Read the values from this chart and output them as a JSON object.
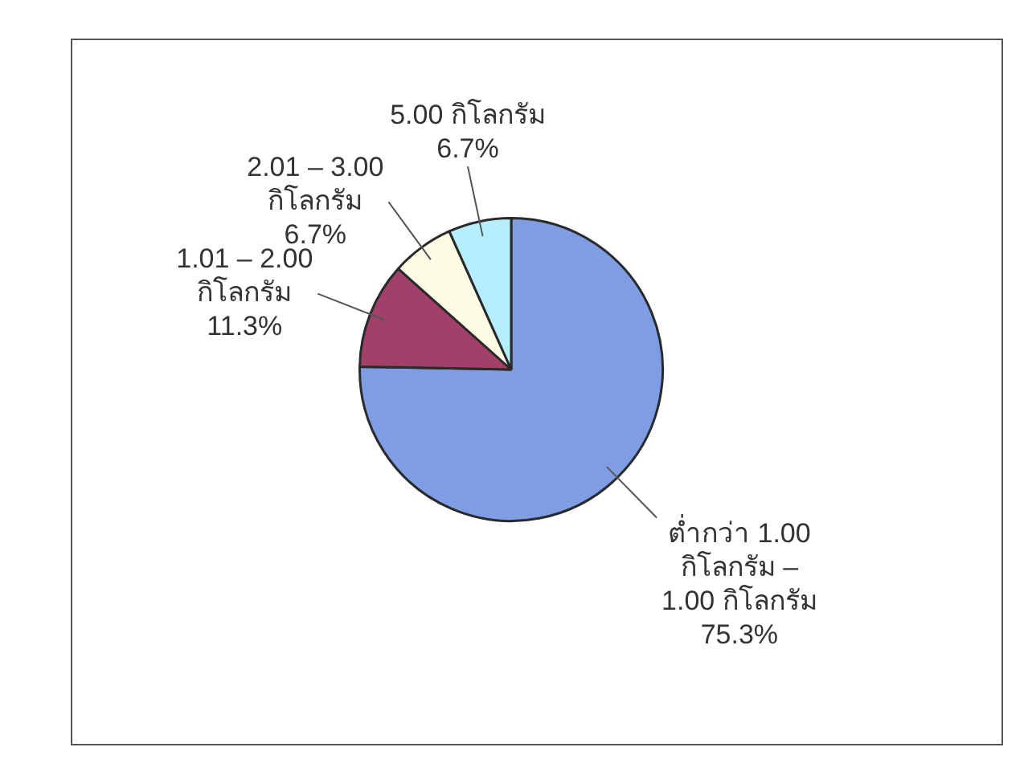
{
  "chart_data": {
    "type": "pie",
    "categories": [
      "ต่ำกว่า 1.00 กิโลกรัม – 1.00 กิโลกรัม",
      "1.01 – 2.00 กิโลกรัม",
      "2.01 – 3.00 กิโลกรัม",
      "5.00 กิโลกรัม"
    ],
    "values": [
      75.3,
      11.3,
      6.7,
      6.7
    ],
    "colors": [
      "#7f9de3",
      "#a3406a",
      "#fffce6",
      "#b5efff"
    ],
    "value_labels": [
      "75.3%",
      "11.3%",
      "6.7%",
      "6.7%"
    ],
    "legend": false
  }
}
